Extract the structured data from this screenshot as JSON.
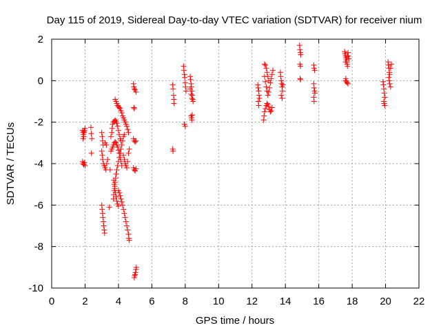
{
  "chart_data": {
    "type": "scatter",
    "title": "Day 115 of 2019, Sidereal Day-to-day VTEC variation (SDTVAR) for receiver nium",
    "xlabel": "GPS time / hours",
    "ylabel": "SDTVAR / TECUs",
    "xlim": [
      0,
      22
    ],
    "ylim": [
      -10,
      2
    ],
    "xticks": [
      0,
      2,
      4,
      6,
      8,
      10,
      12,
      14,
      16,
      18,
      20,
      22
    ],
    "yticks": [
      -10,
      -8,
      -6,
      -4,
      -2,
      0,
      2
    ],
    "xtick_labels": [
      "0",
      "2",
      "4",
      "6",
      "8",
      "10",
      "12",
      "14",
      "16",
      "18",
      "20",
      "22"
    ],
    "ytick_labels": [
      "-10",
      "-8",
      "-6",
      "-4",
      "-2",
      "0",
      "2"
    ],
    "grid": true,
    "marker": "+",
    "color": "#ff0000",
    "series": [
      {
        "name": "SDTVAR",
        "points": [
          [
            1.85,
            -2.4
          ],
          [
            1.87,
            -2.5
          ],
          [
            1.9,
            -2.6
          ],
          [
            1.92,
            -2.7
          ],
          [
            1.95,
            -2.5
          ],
          [
            1.97,
            -2.4
          ],
          [
            2.0,
            -2.3
          ],
          [
            1.88,
            -2.8
          ],
          [
            1.93,
            -2.45
          ],
          [
            1.85,
            -3.9
          ],
          [
            1.88,
            -4.0
          ],
          [
            1.92,
            -4.05
          ],
          [
            1.95,
            -3.95
          ],
          [
            2.0,
            -4.1
          ],
          [
            2.35,
            -2.25
          ],
          [
            2.37,
            -2.55
          ],
          [
            2.4,
            -2.8
          ],
          [
            2.38,
            -3.5
          ],
          [
            3.0,
            -6.0
          ],
          [
            3.02,
            -6.2
          ],
          [
            3.05,
            -6.4
          ],
          [
            3.07,
            -6.6
          ],
          [
            3.1,
            -6.8
          ],
          [
            3.12,
            -7.0
          ],
          [
            3.15,
            -7.2
          ],
          [
            3.17,
            -7.35
          ],
          [
            3.0,
            -2.5
          ],
          [
            3.03,
            -2.7
          ],
          [
            3.05,
            -2.9
          ],
          [
            3.08,
            -3.1
          ],
          [
            3.0,
            -3.4
          ],
          [
            3.03,
            -3.6
          ],
          [
            3.06,
            -3.8
          ],
          [
            3.1,
            -4.0
          ],
          [
            3.15,
            -4.1
          ],
          [
            3.2,
            -4.2
          ],
          [
            3.25,
            -4.3
          ],
          [
            3.3,
            -4.0
          ],
          [
            3.35,
            -3.8
          ],
          [
            3.2,
            -3.0
          ],
          [
            3.28,
            -3.1
          ],
          [
            3.45,
            -6.1
          ],
          [
            3.5,
            -4.3
          ],
          [
            3.55,
            -2.7
          ],
          [
            3.6,
            -2.5
          ],
          [
            3.62,
            -2.3
          ],
          [
            3.65,
            -2.1
          ],
          [
            3.7,
            -2.0
          ],
          [
            3.75,
            -1.95
          ],
          [
            3.8,
            -1.9
          ],
          [
            3.85,
            -1.95
          ],
          [
            3.9,
            -2.05
          ],
          [
            3.95,
            -2.2
          ],
          [
            4.0,
            -2.4
          ],
          [
            4.05,
            -2.6
          ],
          [
            4.1,
            -2.8
          ],
          [
            4.15,
            -2.9
          ],
          [
            3.55,
            -3.4
          ],
          [
            3.6,
            -3.3
          ],
          [
            3.65,
            -3.2
          ],
          [
            3.7,
            -3.1
          ],
          [
            3.75,
            -3.0
          ],
          [
            3.8,
            -2.95
          ],
          [
            3.85,
            -3.0
          ],
          [
            3.9,
            -3.1
          ],
          [
            3.95,
            -3.2
          ],
          [
            4.0,
            -3.35
          ],
          [
            4.05,
            -3.5
          ],
          [
            4.1,
            -3.7
          ],
          [
            4.15,
            -3.9
          ],
          [
            4.2,
            -4.1
          ],
          [
            3.7,
            -5.7
          ],
          [
            3.72,
            -5.5
          ],
          [
            3.75,
            -5.3
          ],
          [
            3.78,
            -5.1
          ],
          [
            3.8,
            -4.9
          ],
          [
            3.83,
            -4.7
          ],
          [
            3.86,
            -4.5
          ],
          [
            3.9,
            -4.3
          ],
          [
            3.95,
            -4.1
          ],
          [
            4.0,
            -3.9
          ],
          [
            4.05,
            -3.7
          ],
          [
            4.1,
            -3.5
          ],
          [
            4.15,
            -3.3
          ],
          [
            4.2,
            -3.1
          ],
          [
            4.25,
            -2.9
          ],
          [
            4.3,
            -2.7
          ],
          [
            4.35,
            -2.6
          ],
          [
            3.72,
            -4.8
          ],
          [
            3.75,
            -5.0
          ],
          [
            3.78,
            -5.2
          ],
          [
            3.82,
            -5.4
          ],
          [
            3.86,
            -5.6
          ],
          [
            3.9,
            -5.8
          ],
          [
            3.95,
            -5.95
          ],
          [
            4.0,
            -6.05
          ],
          [
            3.8,
            -0.9
          ],
          [
            3.85,
            -1.0
          ],
          [
            3.9,
            -1.1
          ],
          [
            3.95,
            -1.2
          ],
          [
            4.0,
            -1.25
          ],
          [
            4.05,
            -1.3
          ],
          [
            4.1,
            -1.35
          ],
          [
            4.15,
            -1.45
          ],
          [
            4.2,
            -1.55
          ],
          [
            4.25,
            -1.7
          ],
          [
            4.3,
            -1.8
          ],
          [
            4.35,
            -1.9
          ],
          [
            4.4,
            -2.0
          ],
          [
            4.45,
            -2.1
          ],
          [
            4.5,
            -2.2
          ],
          [
            4.55,
            -2.35
          ],
          [
            4.6,
            -2.5
          ],
          [
            4.0,
            -5.3
          ],
          [
            4.05,
            -5.4
          ],
          [
            4.1,
            -5.55
          ],
          [
            4.15,
            -5.7
          ],
          [
            4.2,
            -5.85
          ],
          [
            4.25,
            -6.0
          ],
          [
            4.3,
            -6.2
          ],
          [
            4.35,
            -6.4
          ],
          [
            4.4,
            -6.6
          ],
          [
            4.45,
            -6.8
          ],
          [
            4.5,
            -7.0
          ],
          [
            4.55,
            -7.2
          ],
          [
            4.6,
            -7.4
          ],
          [
            4.62,
            -7.6
          ],
          [
            4.65,
            -7.7
          ],
          [
            4.3,
            -3.6
          ],
          [
            4.35,
            -3.8
          ],
          [
            4.4,
            -4.0
          ],
          [
            4.45,
            -4.1
          ],
          [
            4.5,
            -4.2
          ],
          [
            4.55,
            -3.9
          ],
          [
            4.6,
            -3.5
          ],
          [
            4.65,
            -3.3
          ],
          [
            4.9,
            -0.15
          ],
          [
            4.92,
            -0.3
          ],
          [
            4.95,
            -0.4
          ],
          [
            5.0,
            -0.45
          ],
          [
            5.05,
            -0.55
          ],
          [
            4.92,
            -1.3
          ],
          [
            4.95,
            -1.35
          ],
          [
            4.9,
            -2.8
          ],
          [
            4.95,
            -2.9
          ],
          [
            5.0,
            -2.95
          ],
          [
            5.05,
            -2.9
          ],
          [
            4.9,
            -4.2
          ],
          [
            4.95,
            -4.3
          ],
          [
            5.0,
            -4.35
          ],
          [
            5.05,
            -4.25
          ],
          [
            4.95,
            -9.5
          ],
          [
            5.0,
            -9.35
          ],
          [
            5.02,
            -9.25
          ],
          [
            5.05,
            -9.1
          ],
          [
            5.07,
            -9.0
          ],
          [
            4.97,
            -9.4
          ],
          [
            7.25,
            -0.2
          ],
          [
            7.27,
            -0.4
          ],
          [
            7.3,
            -0.7
          ],
          [
            7.32,
            -0.9
          ],
          [
            7.33,
            -1.1
          ],
          [
            7.25,
            -3.3
          ],
          [
            7.27,
            -3.4
          ],
          [
            7.9,
            0.7
          ],
          [
            7.92,
            0.5
          ],
          [
            7.95,
            0.3
          ],
          [
            7.97,
            0.15
          ],
          [
            8.0,
            -0.1
          ],
          [
            8.02,
            -0.3
          ],
          [
            8.05,
            -0.5
          ],
          [
            7.95,
            -2.1
          ],
          [
            8.0,
            -2.2
          ],
          [
            8.3,
            0.2
          ],
          [
            8.32,
            0.05
          ],
          [
            8.35,
            -0.15
          ],
          [
            8.37,
            -0.3
          ],
          [
            8.4,
            -0.5
          ],
          [
            8.42,
            -0.7
          ],
          [
            8.45,
            -0.9
          ],
          [
            8.47,
            -1.0
          ],
          [
            8.3,
            -0.4
          ],
          [
            8.35,
            -0.65
          ],
          [
            8.4,
            -0.85
          ],
          [
            8.35,
            -1.7
          ],
          [
            8.38,
            -1.8
          ],
          [
            8.4,
            -1.9
          ],
          [
            8.42,
            -1.65
          ],
          [
            12.35,
            -0.2
          ],
          [
            12.37,
            -0.35
          ],
          [
            12.4,
            -0.5
          ],
          [
            12.42,
            -0.7
          ],
          [
            12.45,
            -0.85
          ],
          [
            12.38,
            -1.0
          ],
          [
            12.4,
            -1.2
          ],
          [
            12.7,
            -1.9
          ],
          [
            12.72,
            -1.7
          ],
          [
            12.75,
            -1.5
          ],
          [
            12.8,
            -1.35
          ],
          [
            12.85,
            -1.2
          ],
          [
            12.9,
            -1.1
          ],
          [
            12.95,
            -1.15
          ],
          [
            13.0,
            -1.25
          ],
          [
            13.05,
            -1.4
          ],
          [
            13.1,
            -1.5
          ],
          [
            13.15,
            -1.45
          ],
          [
            13.2,
            -1.3
          ],
          [
            12.75,
            0.8
          ],
          [
            12.8,
            0.75
          ],
          [
            12.85,
            0.6
          ],
          [
            12.9,
            0.4
          ],
          [
            12.95,
            0.2
          ],
          [
            13.0,
            0.0
          ],
          [
            12.75,
            0.2
          ],
          [
            12.8,
            -0.05
          ],
          [
            12.85,
            -0.3
          ],
          [
            12.9,
            -0.5
          ],
          [
            12.95,
            -0.7
          ],
          [
            13.0,
            -0.55
          ],
          [
            13.05,
            -0.35
          ],
          [
            13.1,
            -0.1
          ],
          [
            13.15,
            0.1
          ],
          [
            13.2,
            0.3
          ],
          [
            13.25,
            0.5
          ],
          [
            13.7,
            0.4
          ],
          [
            13.72,
            0.2
          ],
          [
            13.75,
            0.0
          ],
          [
            13.77,
            -0.15
          ],
          [
            13.8,
            -0.3
          ],
          [
            13.82,
            -0.5
          ],
          [
            13.75,
            -0.7
          ],
          [
            13.8,
            -0.85
          ],
          [
            13.85,
            -0.2
          ],
          [
            14.85,
            1.7
          ],
          [
            14.87,
            1.5
          ],
          [
            14.9,
            1.35
          ],
          [
            14.92,
            1.25
          ],
          [
            14.87,
            0.8
          ],
          [
            14.9,
            0.7
          ],
          [
            14.88,
            0.1
          ],
          [
            14.9,
            0.05
          ],
          [
            15.7,
            0.75
          ],
          [
            15.72,
            0.6
          ],
          [
            15.75,
            0.5
          ],
          [
            15.7,
            -0.15
          ],
          [
            15.72,
            -0.35
          ],
          [
            15.75,
            -0.5
          ],
          [
            15.77,
            -0.6
          ],
          [
            15.7,
            -0.8
          ],
          [
            15.72,
            -1.0
          ],
          [
            17.55,
            1.4
          ],
          [
            17.57,
            1.3
          ],
          [
            17.6,
            1.2
          ],
          [
            17.62,
            1.1
          ],
          [
            17.65,
            1.0
          ],
          [
            17.67,
            0.9
          ],
          [
            17.7,
            0.8
          ],
          [
            17.72,
            0.7
          ],
          [
            17.75,
            1.35
          ],
          [
            17.77,
            1.2
          ],
          [
            17.8,
            1.05
          ],
          [
            17.6,
            0.9
          ],
          [
            17.7,
            1.15
          ],
          [
            17.6,
            0.0
          ],
          [
            17.65,
            -0.05
          ],
          [
            17.7,
            -0.1
          ],
          [
            17.75,
            -0.15
          ],
          [
            17.62,
            0.1
          ],
          [
            19.85,
            -0.05
          ],
          [
            19.87,
            -0.2
          ],
          [
            19.9,
            -0.4
          ],
          [
            19.92,
            -0.6
          ],
          [
            19.95,
            -0.8
          ],
          [
            19.9,
            -1.0
          ],
          [
            19.92,
            -1.1
          ],
          [
            19.95,
            -1.2
          ],
          [
            20.15,
            0.9
          ],
          [
            20.17,
            0.75
          ],
          [
            20.2,
            0.6
          ],
          [
            20.22,
            0.4
          ],
          [
            20.25,
            0.3
          ],
          [
            20.2,
            0.15
          ],
          [
            20.22,
            0.0
          ],
          [
            20.25,
            -0.15
          ],
          [
            20.3,
            -0.3
          ],
          [
            20.35,
            0.8
          ],
          [
            20.3,
            0.6
          ]
        ]
      }
    ]
  }
}
